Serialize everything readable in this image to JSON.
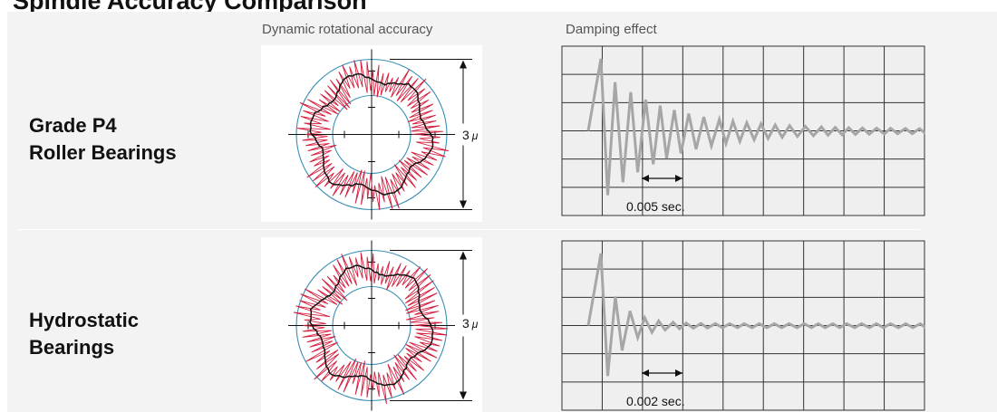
{
  "page": {
    "title": "Spindle Accuracy Comparison"
  },
  "columns": {
    "accuracy": "Dynamic rotational accuracy",
    "damping": "Damping effect"
  },
  "rows": [
    {
      "label_line1": "Grade P4",
      "label_line2": "Roller Bearings",
      "scale": "3",
      "unit": "μ",
      "time": "0.005 sec."
    },
    {
      "label_line1": "Hydrostatic",
      "label_line2": "Bearings",
      "scale": "3",
      "unit": "μ",
      "time": "0.002 sec."
    }
  ],
  "colors": {
    "circle": "#3a8fb5",
    "trace_red": "#d51f3f",
    "trace_black": "#111111",
    "damping_wave": "#a6a6a6",
    "grid": "#333333",
    "grid_bg": "#efefef"
  }
}
